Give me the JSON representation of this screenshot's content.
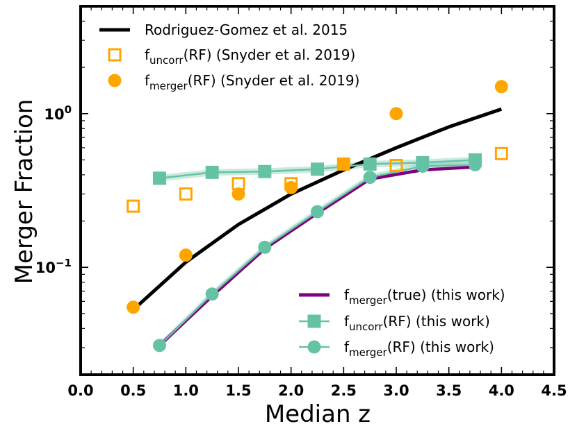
{
  "chart_data": {
    "type": "line",
    "xlabel": "Median z",
    "ylabel": "Merger Fraction",
    "xlim": [
      0.0,
      4.5
    ],
    "ylim": [
      0.02,
      5.0
    ],
    "yscale": "log",
    "grid": false,
    "x_ticks": [
      "0.0",
      "0.5",
      "1.0",
      "1.5",
      "2.0",
      "2.5",
      "3.0",
      "3.5",
      "4.0",
      "4.5"
    ],
    "y_ticks": [
      {
        "value": 0.1,
        "base": "10",
        "exp": "−1"
      },
      {
        "value": 1.0,
        "base": "10",
        "exp": "0"
      }
    ],
    "colors": {
      "black": "#000000",
      "orange": "#ffa500",
      "purple": "#800080",
      "teal": "#66c2a5"
    },
    "series": [
      {
        "key": "rg15",
        "marker": "none",
        "color": "#000000",
        "x": [
          0.5,
          1.0,
          1.5,
          2.0,
          2.5,
          3.0,
          3.5,
          4.0
        ],
        "y": [
          0.053,
          0.108,
          0.19,
          0.3,
          0.43,
          0.6,
          0.82,
          1.07
        ]
      },
      {
        "key": "snyder_uncorr",
        "marker": "open-square",
        "color": "#ffa500",
        "x": [
          0.5,
          1.0,
          1.5,
          2.0,
          2.5,
          3.0,
          4.0
        ],
        "y": [
          0.25,
          0.3,
          0.35,
          0.35,
          0.47,
          0.46,
          0.55
        ]
      },
      {
        "key": "snyder_merger",
        "marker": "filled-circle",
        "color": "#ffa500",
        "x": [
          0.5,
          1.0,
          1.5,
          2.0,
          2.5,
          3.0,
          4.0
        ],
        "y": [
          0.055,
          0.12,
          0.3,
          0.33,
          0.47,
          1.0,
          1.5
        ]
      },
      {
        "key": "true",
        "marker": "none",
        "color": "#800080",
        "x": [
          0.75,
          1.25,
          1.75,
          2.25,
          2.75,
          3.25,
          3.75
        ],
        "y": [
          0.031,
          0.065,
          0.132,
          0.225,
          0.375,
          0.43,
          0.45
        ]
      },
      {
        "key": "uncorr",
        "marker": "filled-square",
        "color": "#66c2a5",
        "x": [
          0.75,
          1.25,
          1.75,
          2.25,
          2.75,
          3.25,
          3.75
        ],
        "y": [
          0.38,
          0.415,
          0.42,
          0.435,
          0.47,
          0.48,
          0.5
        ]
      },
      {
        "key": "merger",
        "marker": "filled-circle",
        "color": "#66c2a5",
        "x": [
          0.75,
          1.25,
          1.75,
          2.25,
          2.75,
          3.25,
          3.75
        ],
        "y": [
          0.031,
          0.067,
          0.135,
          0.23,
          0.385,
          0.455,
          0.465
        ]
      }
    ],
    "legend_top": {
      "placement": "upper-left",
      "entries": [
        {
          "series": "rg15",
          "text": "Rodriguez-Gomez et al. 2015"
        },
        {
          "series": "snyder_uncorr",
          "base": "f",
          "sub": "uncorr",
          "text": "(RF) (Snyder et al. 2019)"
        },
        {
          "series": "snyder_merger",
          "base": "f",
          "sub": "merger",
          "text": "(RF) (Snyder et al. 2019)"
        }
      ]
    },
    "legend_bottom": {
      "placement": "lower-right",
      "entries": [
        {
          "series": "true",
          "base": "f",
          "sub": "merger",
          "text": "(true) (this work)"
        },
        {
          "series": "uncorr",
          "base": "f",
          "sub": "uncorr",
          "text": "(RF) (this work)"
        },
        {
          "series": "merger",
          "base": "f",
          "sub": "merger",
          "text": "(RF) (this work)"
        }
      ]
    }
  }
}
